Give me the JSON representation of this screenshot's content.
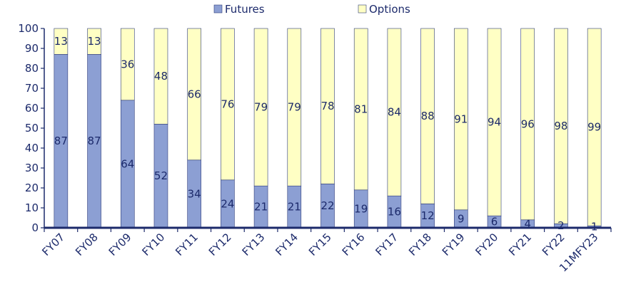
{
  "chart_data": {
    "type": "bar",
    "stacked": true,
    "title": "",
    "xlabel": "",
    "ylabel": "",
    "ylim": [
      0,
      100
    ],
    "yticks": [
      0,
      10,
      20,
      30,
      40,
      50,
      60,
      70,
      80,
      90,
      100
    ],
    "grid": false,
    "legend_position": "top",
    "categories": [
      "FY07",
      "FY08",
      "FY09",
      "FY10",
      "FY11",
      "FY12",
      "FY13",
      "FY14",
      "FY15",
      "FY16",
      "FY17",
      "FY18",
      "FY19",
      "FY20",
      "FY21",
      "FY22",
      "11MFY23"
    ],
    "series": [
      {
        "name": "Futures",
        "color": "#8c9fd3",
        "values": [
          87,
          87,
          64,
          52,
          34,
          24,
          21,
          21,
          22,
          19,
          16,
          12,
          9,
          6,
          4,
          2,
          1
        ]
      },
      {
        "name": "Options",
        "color": "#ffffc4",
        "values": [
          13,
          13,
          36,
          48,
          66,
          76,
          79,
          79,
          78,
          81,
          84,
          88,
          91,
          94,
          96,
          98,
          99
        ]
      }
    ],
    "axis_color": "#1c2a6b",
    "text_color": "#1c2a6b"
  }
}
